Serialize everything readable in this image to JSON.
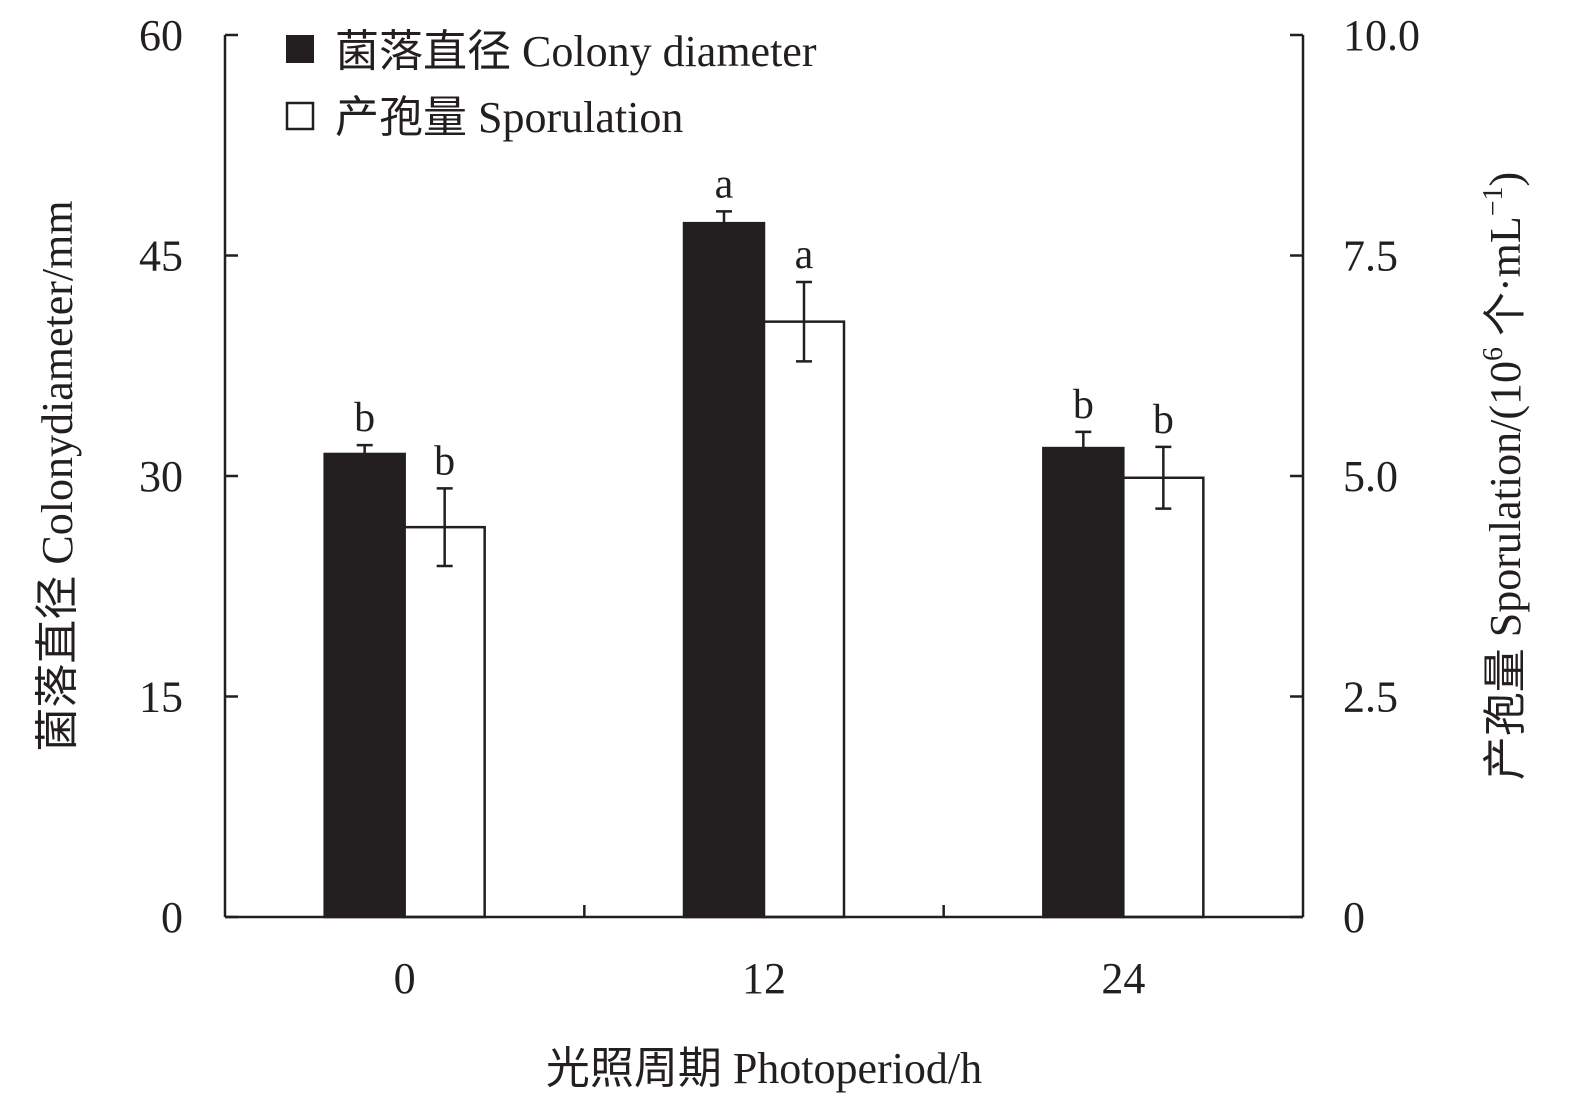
{
  "chart_data": {
    "type": "bar",
    "categories": [
      "0",
      "12",
      "24"
    ],
    "xlabel": "光照周期 Photoperiod/h",
    "ylabel": "菌落直径 Colonydiameter/mm",
    "y2label_main": "产孢量 Sporulation/(10",
    "y2label_sup": "6",
    "y2label_unit": " 个·mL",
    "y2label_sup2": "−1",
    "y2label_close": ")",
    "ylim": [
      0,
      60
    ],
    "y2lim": [
      0,
      10
    ],
    "yticks": [
      "0",
      "15",
      "30",
      "45",
      "60"
    ],
    "y2ticks": [
      "0",
      "2.5",
      "5.0",
      "7.5",
      "10.0"
    ],
    "legend_position": "top-left",
    "series": [
      {
        "name": "菌落直径 Colony diameter",
        "axis": "left",
        "color": "#231f20",
        "values": [
          31.5,
          47.2,
          31.9
        ],
        "errors": [
          0.6,
          0.8,
          1.1
        ],
        "labels": [
          "b",
          "a",
          "b"
        ]
      },
      {
        "name": "产孢量 Sporulation",
        "axis": "right",
        "color": "#ffffff",
        "values": [
          4.42,
          6.75,
          4.98
        ],
        "errors": [
          0.44,
          0.45,
          0.35
        ],
        "labels": [
          "b",
          "a",
          "b"
        ]
      }
    ]
  }
}
